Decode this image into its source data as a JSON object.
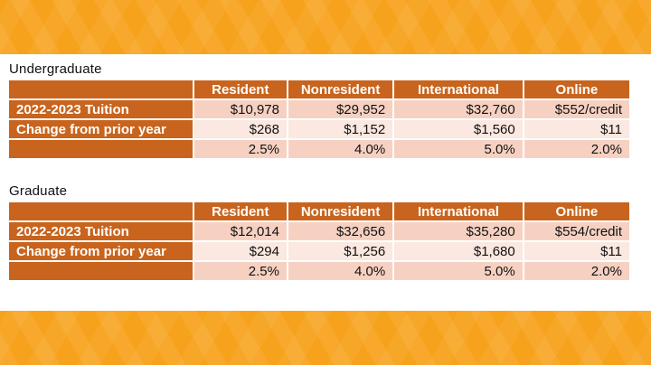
{
  "undergraduate": {
    "title": "Undergraduate",
    "headers": [
      "Resident",
      "Nonresident",
      "International",
      "Online"
    ],
    "rows": [
      {
        "label": "2022-2023 Tuition",
        "values": [
          "$10,978",
          "$29,952",
          "$32,760",
          "$552/credit"
        ]
      },
      {
        "label": "Change from prior year",
        "values": [
          "$268",
          "$1,152",
          "$1,560",
          "$11"
        ]
      },
      {
        "label": "",
        "values": [
          "2.5%",
          "4.0%",
          "5.0%",
          "2.0%"
        ]
      }
    ]
  },
  "graduate": {
    "title": "Graduate",
    "headers": [
      "Resident",
      "Nonresident",
      "International",
      "Online"
    ],
    "rows": [
      {
        "label": "2022-2023 Tuition",
        "values": [
          "$12,014",
          "$32,656",
          "$35,280",
          "$554/credit"
        ]
      },
      {
        "label": "Change from prior year",
        "values": [
          "$294",
          "$1,256",
          "$1,680",
          "$11"
        ]
      },
      {
        "label": "",
        "values": [
          "2.5%",
          "4.0%",
          "5.0%",
          "2.0%"
        ]
      }
    ]
  },
  "colors": {
    "band_orange": "#f7a21c",
    "header_fill": "#c8641d",
    "cell_dark": "#f6d1c2",
    "cell_light": "#fbe8e0"
  }
}
